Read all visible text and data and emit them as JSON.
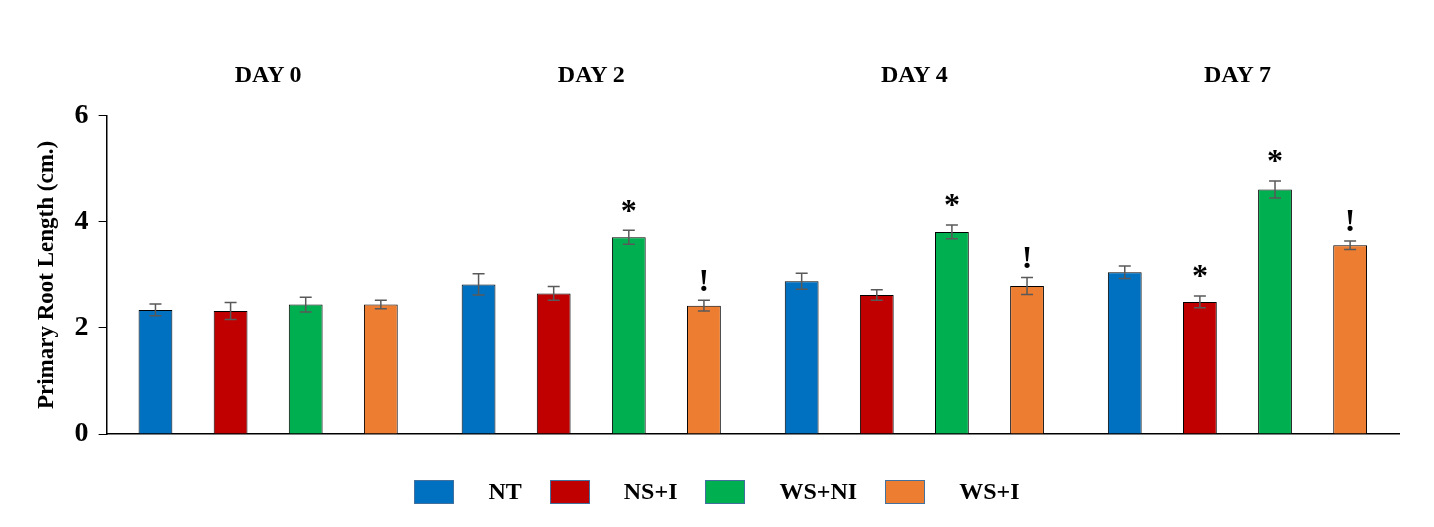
{
  "chart_data": {
    "type": "bar",
    "ylabel": "Primary Root Length (cm.)",
    "categories": [
      "DAY 0",
      "DAY 2",
      "DAY 4",
      "DAY 7"
    ],
    "ylim": [
      0,
      6
    ],
    "yticks": [
      0,
      2,
      4,
      6
    ],
    "legend": "bottom",
    "series": [
      {
        "name": "NT",
        "color": "#0070c0",
        "values": [
          2.34,
          2.82,
          2.88,
          3.05
        ],
        "errors": [
          0.11,
          0.2,
          0.15,
          0.12
        ]
      },
      {
        "name": "NS+I",
        "color": "#c00000",
        "values": [
          2.32,
          2.65,
          2.62,
          2.49
        ],
        "errors": [
          0.16,
          0.13,
          0.1,
          0.11
        ],
        "value_labels": [
          null,
          null,
          null,
          "*"
        ]
      },
      {
        "name": "WS+NI",
        "color": "#00b050",
        "values": [
          2.44,
          3.71,
          3.81,
          4.61
        ],
        "errors": [
          0.14,
          0.13,
          0.13,
          0.16
        ],
        "value_labels": [
          null,
          "*",
          "*",
          "*"
        ]
      },
      {
        "name": "WS+I",
        "color": "#ed7d31",
        "values": [
          2.44,
          2.42,
          2.79,
          3.56
        ],
        "errors": [
          0.08,
          0.1,
          0.16,
          0.08
        ],
        "value_labels": [
          null,
          "!",
          "!",
          "!"
        ]
      }
    ]
  }
}
